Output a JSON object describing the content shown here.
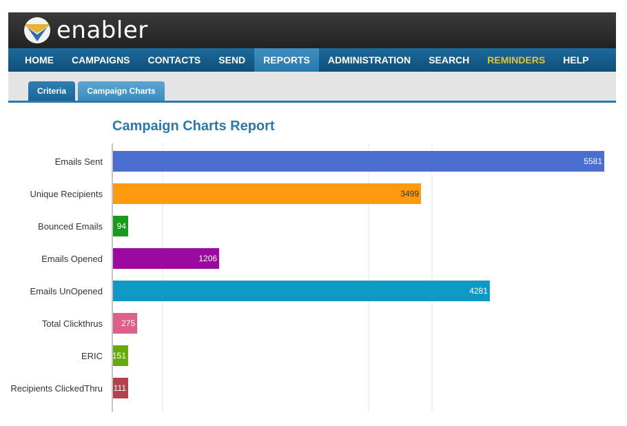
{
  "app": {
    "logo_text": "enabler",
    "logo_icon": "enabler-logo-icon"
  },
  "nav": {
    "items": [
      {
        "label": "HOME"
      },
      {
        "label": "CAMPAIGNS"
      },
      {
        "label": "CONTACTS"
      },
      {
        "label": "SEND"
      },
      {
        "label": "REPORTS",
        "active": true
      },
      {
        "label": "ADMINISTRATION"
      },
      {
        "label": "SEARCH"
      },
      {
        "label": "REMINDERS"
      },
      {
        "label": "HELP"
      }
    ]
  },
  "subnav": {
    "tabs": [
      {
        "label": "Criteria"
      },
      {
        "label": "Campaign Charts",
        "active": true
      }
    ]
  },
  "report": {
    "title": "Campaign Charts Report"
  },
  "colors": {
    "accent": "#2b78ad",
    "nav_bg": "#0f4f7a",
    "reminders": "#e0c440"
  },
  "chart_data": {
    "type": "bar",
    "orientation": "horizontal",
    "categories": [
      "Emails Sent",
      "Unique Recipients",
      "Bounced Emails",
      "Emails Opened",
      "Emails UnOpened",
      "Total Clickthrus",
      "ERIC",
      "Recipients ClickedThru"
    ],
    "values": [
      5581,
      3499,
      94,
      1206,
      4281,
      275,
      151,
      111
    ],
    "colors": [
      "#4a6fd0",
      "#ff9a0e",
      "#199a1e",
      "#9a0a9e",
      "#1199c6",
      "#dc6088",
      "#66aa10",
      "#b3424f"
    ],
    "xlim": [
      0,
      5581
    ],
    "grid": true
  }
}
